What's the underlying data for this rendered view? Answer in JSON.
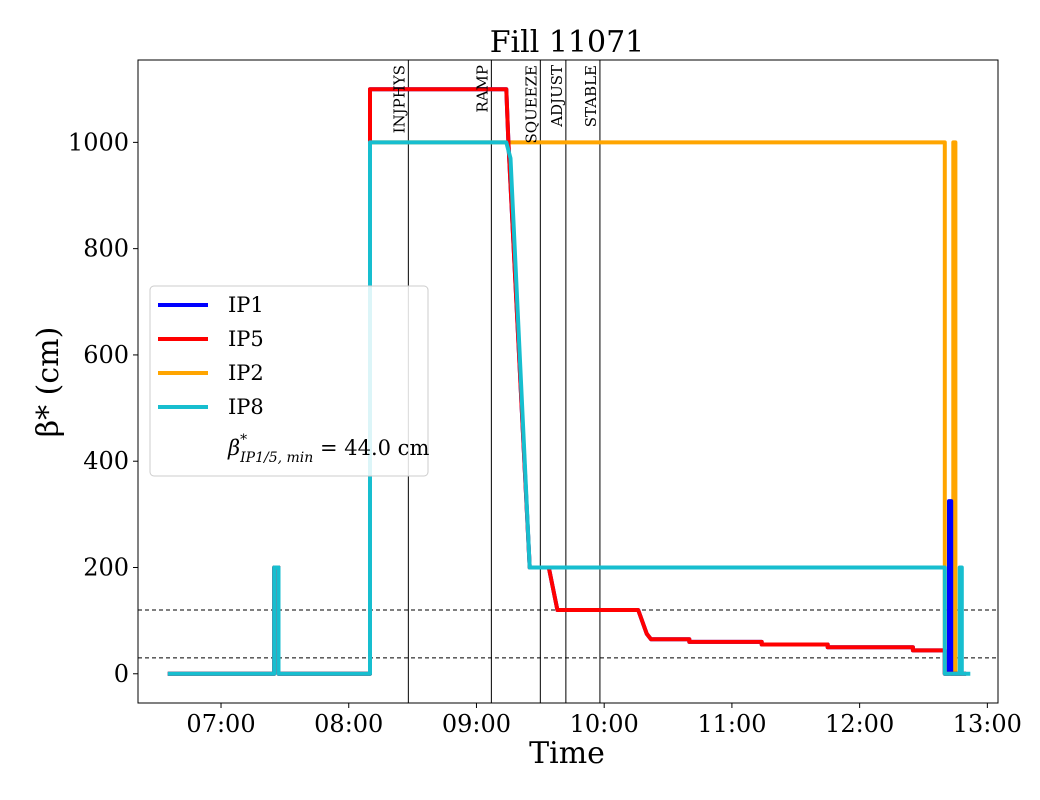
{
  "chart_data": {
    "type": "line",
    "title": "Fill 11071",
    "xlabel": "Time",
    "ylabel": "β* (cm)",
    "x_format": "HH:MM",
    "xlim": [
      "06:21",
      "13:05"
    ],
    "ylim": [
      -55,
      1155
    ],
    "xticks": [
      "07:00",
      "08:00",
      "09:00",
      "10:00",
      "11:00",
      "12:00",
      "13:00"
    ],
    "yticks": [
      0,
      200,
      400,
      600,
      800,
      1000
    ],
    "grid": false,
    "legend_position": "center-left",
    "legend_note": "β*IP1/5, min = 44.0 cm",
    "beam_modes": [
      {
        "label": "INJPHYS",
        "x": "08:28"
      },
      {
        "label": "RAMP",
        "x": "09:07"
      },
      {
        "label": "SQUEEZE",
        "x": "09:30"
      },
      {
        "label": "ADJUST",
        "x": "09:42"
      },
      {
        "label": "STABLE",
        "x": "09:58"
      }
    ],
    "reference_lines": [
      120,
      30
    ],
    "series": [
      {
        "name": "IP2",
        "color": "#ffa500",
        "points": [
          [
            "06:35",
            0
          ],
          [
            "07:25",
            0
          ],
          [
            "07:25",
            200
          ],
          [
            "07:27",
            200
          ],
          [
            "07:27",
            0
          ],
          [
            "08:10",
            0
          ],
          [
            "08:10",
            1000
          ],
          [
            "12:40",
            1000
          ],
          [
            "12:40",
            0
          ],
          [
            "12:44",
            0
          ],
          [
            "12:44",
            1000
          ],
          [
            "12:45",
            1000
          ],
          [
            "12:45",
            0
          ],
          [
            "12:50",
            0
          ]
        ]
      },
      {
        "name": "IP1",
        "color": "#0000ff",
        "points": [
          [
            "06:35",
            0
          ],
          [
            "07:25",
            0
          ],
          [
            "07:25",
            200
          ],
          [
            "07:27",
            200
          ],
          [
            "07:27",
            0
          ],
          [
            "08:10",
            0
          ],
          [
            "08:10",
            1100
          ],
          [
            "09:14",
            1100
          ],
          [
            "09:15",
            1000
          ],
          [
            "09:25",
            200
          ],
          [
            "09:34",
            200
          ],
          [
            "09:38",
            120
          ],
          [
            "10:16",
            120
          ],
          [
            "10:20",
            75
          ],
          [
            "10:22",
            65
          ],
          [
            "10:40",
            65
          ],
          [
            "10:40",
            60
          ],
          [
            "11:14",
            60
          ],
          [
            "11:14",
            55
          ],
          [
            "11:45",
            55
          ],
          [
            "11:45",
            50
          ],
          [
            "12:25",
            50
          ],
          [
            "12:25",
            44
          ],
          [
            "12:40",
            44
          ],
          [
            "12:40",
            0
          ],
          [
            "12:42",
            0
          ],
          [
            "12:42",
            325
          ],
          [
            "12:43",
            325
          ],
          [
            "12:43",
            0
          ],
          [
            "12:50",
            0
          ]
        ]
      },
      {
        "name": "IP5",
        "color": "#ff0000",
        "points": [
          [
            "06:35",
            0
          ],
          [
            "07:25",
            0
          ],
          [
            "07:25",
            200
          ],
          [
            "07:27",
            200
          ],
          [
            "07:27",
            0
          ],
          [
            "08:10",
            0
          ],
          [
            "08:10",
            1100
          ],
          [
            "09:14",
            1100
          ],
          [
            "09:15",
            1000
          ],
          [
            "09:25",
            200
          ],
          [
            "09:34",
            200
          ],
          [
            "09:38",
            120
          ],
          [
            "10:16",
            120
          ],
          [
            "10:20",
            75
          ],
          [
            "10:22",
            65
          ],
          [
            "10:40",
            65
          ],
          [
            "10:40",
            60
          ],
          [
            "11:14",
            60
          ],
          [
            "11:14",
            55
          ],
          [
            "11:45",
            55
          ],
          [
            "11:45",
            50
          ],
          [
            "12:25",
            50
          ],
          [
            "12:25",
            44
          ],
          [
            "12:40",
            44
          ],
          [
            "12:40",
            0
          ],
          [
            "12:50",
            0
          ]
        ]
      },
      {
        "name": "IP8",
        "color": "#17becf",
        "points": [
          [
            "06:35",
            0
          ],
          [
            "07:25",
            0
          ],
          [
            "07:25",
            200
          ],
          [
            "07:27",
            200
          ],
          [
            "07:27",
            0
          ],
          [
            "08:10",
            0
          ],
          [
            "08:10",
            1000
          ],
          [
            "09:14",
            1000
          ],
          [
            "09:16",
            970
          ],
          [
            "09:25",
            200
          ],
          [
            "12:40",
            200
          ],
          [
            "12:40",
            0
          ],
          [
            "12:47",
            0
          ],
          [
            "12:47",
            200
          ],
          [
            "12:48",
            200
          ],
          [
            "12:48",
            0
          ],
          [
            "12:52",
            0
          ]
        ]
      }
    ]
  }
}
